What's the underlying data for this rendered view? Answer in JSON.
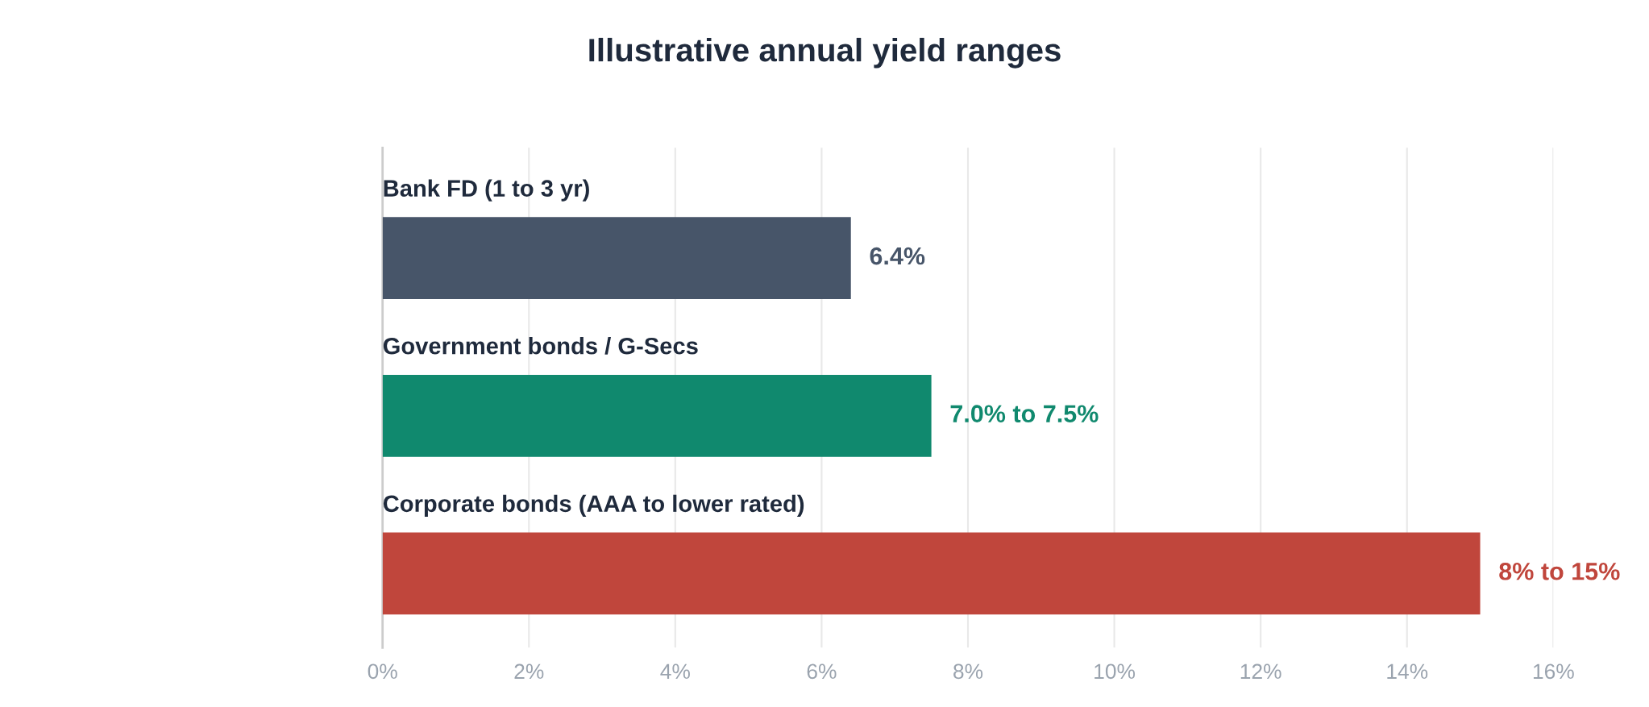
{
  "chart_data": {
    "type": "bar",
    "orientation": "horizontal",
    "title": "Illustrative annual yield ranges",
    "categories": [
      "Bank FD (1 to 3 yr)",
      "Government bonds / G-Secs",
      "Corporate bonds (AAA to lower rated)"
    ],
    "values": [
      6.4,
      7.5,
      15
    ],
    "colors": [
      "#475569",
      "#10896e",
      "#c0463c"
    ],
    "value_labels": [
      "6.4%",
      "7.0% to 7.5%",
      "8% to 15%"
    ],
    "xlim": [
      0,
      16
    ],
    "xticks": [
      {
        "value": 0,
        "label": "0%"
      },
      {
        "value": 2,
        "label": "2%"
      },
      {
        "value": 4,
        "label": "4%"
      },
      {
        "value": 6,
        "label": "6%"
      },
      {
        "value": 8,
        "label": "8%"
      },
      {
        "value": 10,
        "label": "10%"
      },
      {
        "value": 12,
        "label": "12%"
      },
      {
        "value": 14,
        "label": "14%"
      },
      {
        "value": 16,
        "label": "16%"
      }
    ],
    "grid": "x"
  }
}
